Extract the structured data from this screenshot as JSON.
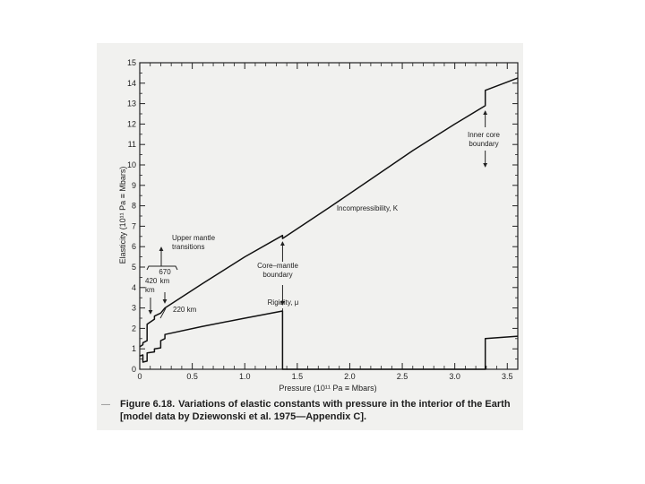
{
  "chart_data": {
    "type": "line",
    "xlabel": "Pressure (10¹¹ Pa ≡ Mbars)",
    "ylabel": "Elasticity (10¹¹ Pa ≡ Mbars)",
    "xlim": [
      0,
      3.6
    ],
    "ylim": [
      0,
      15
    ],
    "x_ticks": [
      "0",
      "0.5",
      "1.0",
      "1.5",
      "2.0",
      "2.5",
      "3.0",
      "3.5"
    ],
    "x_tick_values": [
      0,
      0.5,
      1.0,
      1.5,
      2.0,
      2.5,
      3.0,
      3.5
    ],
    "y_ticks": [
      "0",
      "1",
      "2",
      "3",
      "4",
      "5",
      "6",
      "7",
      "8",
      "9",
      "10",
      "11",
      "12",
      "13",
      "14",
      "15"
    ],
    "grid": false,
    "series": [
      {
        "name": "Incompressibility, K",
        "points": [
          [
            0,
            1.1
          ],
          [
            0.03,
            1.2
          ],
          [
            0.03,
            1.3
          ],
          [
            0.07,
            1.4
          ],
          [
            0.07,
            2.2
          ],
          [
            0.14,
            2.45
          ],
          [
            0.14,
            2.6
          ],
          [
            0.2,
            2.75
          ],
          [
            0.24,
            3.0
          ],
          [
            0.6,
            4.2
          ],
          [
            1.0,
            5.5
          ],
          [
            1.36,
            6.55
          ],
          [
            1.36,
            6.4
          ],
          [
            1.8,
            7.9
          ],
          [
            2.2,
            9.3
          ],
          [
            2.6,
            10.7
          ],
          [
            3.0,
            12.0
          ],
          [
            3.29,
            12.9
          ],
          [
            3.29,
            13.65
          ],
          [
            3.6,
            14.25
          ]
        ]
      },
      {
        "name": "Rigidity, μ",
        "points": [
          [
            0,
            0.65
          ],
          [
            0.03,
            0.7
          ],
          [
            0.03,
            0.35
          ],
          [
            0.07,
            0.4
          ],
          [
            0.07,
            0.8
          ],
          [
            0.14,
            0.85
          ],
          [
            0.14,
            1.0
          ],
          [
            0.2,
            1.05
          ],
          [
            0.2,
            1.4
          ],
          [
            0.24,
            1.5
          ],
          [
            0.24,
            1.7
          ],
          [
            0.6,
            2.1
          ],
          [
            1.0,
            2.5
          ],
          [
            1.36,
            2.85
          ],
          [
            1.36,
            0
          ],
          [
            3.29,
            0
          ],
          [
            3.29,
            1.5
          ],
          [
            3.6,
            1.62
          ]
        ]
      }
    ],
    "annotations": [
      {
        "id": "upper-mantle",
        "lines": [
          "Upper mantle",
          "transitions"
        ]
      },
      {
        "id": "km670",
        "lines": [
          "670",
          "km"
        ]
      },
      {
        "id": "km420",
        "lines": [
          "420",
          "km"
        ]
      },
      {
        "id": "km220",
        "lines": [
          "220 km"
        ]
      },
      {
        "id": "cmb",
        "lines": [
          "Core–mantle",
          "boundary"
        ]
      },
      {
        "id": "inner-core",
        "lines": [
          "Inner core",
          "boundary"
        ]
      },
      {
        "id": "k-label",
        "lines": [
          "Incompressibility, K"
        ]
      },
      {
        "id": "mu-label",
        "lines": [
          "Rigidity, μ"
        ]
      }
    ]
  },
  "caption": {
    "figure_label": "Figure 6.18.",
    "text": "Variations of elastic constants with pressure in the interior of the Earth [model data by Dziewonski et al. 1975—Appendix C]."
  },
  "margin_mark": "—"
}
